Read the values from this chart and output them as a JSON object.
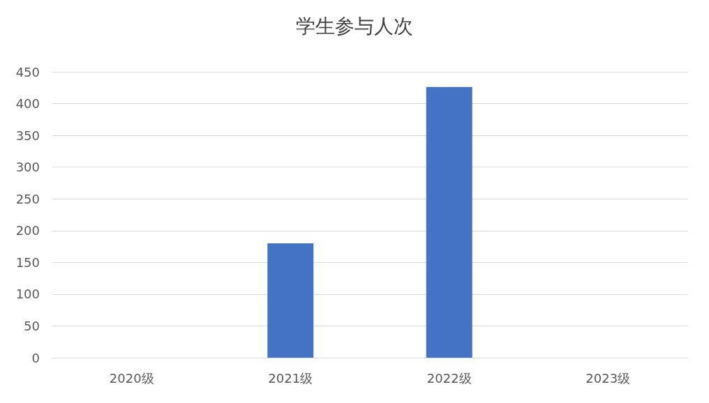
{
  "chart_data": {
    "type": "bar",
    "title": "学生参与人次",
    "categories": [
      "2020级",
      "2021级",
      "2022级",
      "2023级"
    ],
    "values": [
      0,
      180,
      426,
      0
    ],
    "color": "#4472c4",
    "ylim": [
      0,
      450
    ],
    "yticks": [
      0,
      50,
      100,
      150,
      200,
      250,
      300,
      350,
      400,
      450
    ],
    "grid": "y"
  }
}
